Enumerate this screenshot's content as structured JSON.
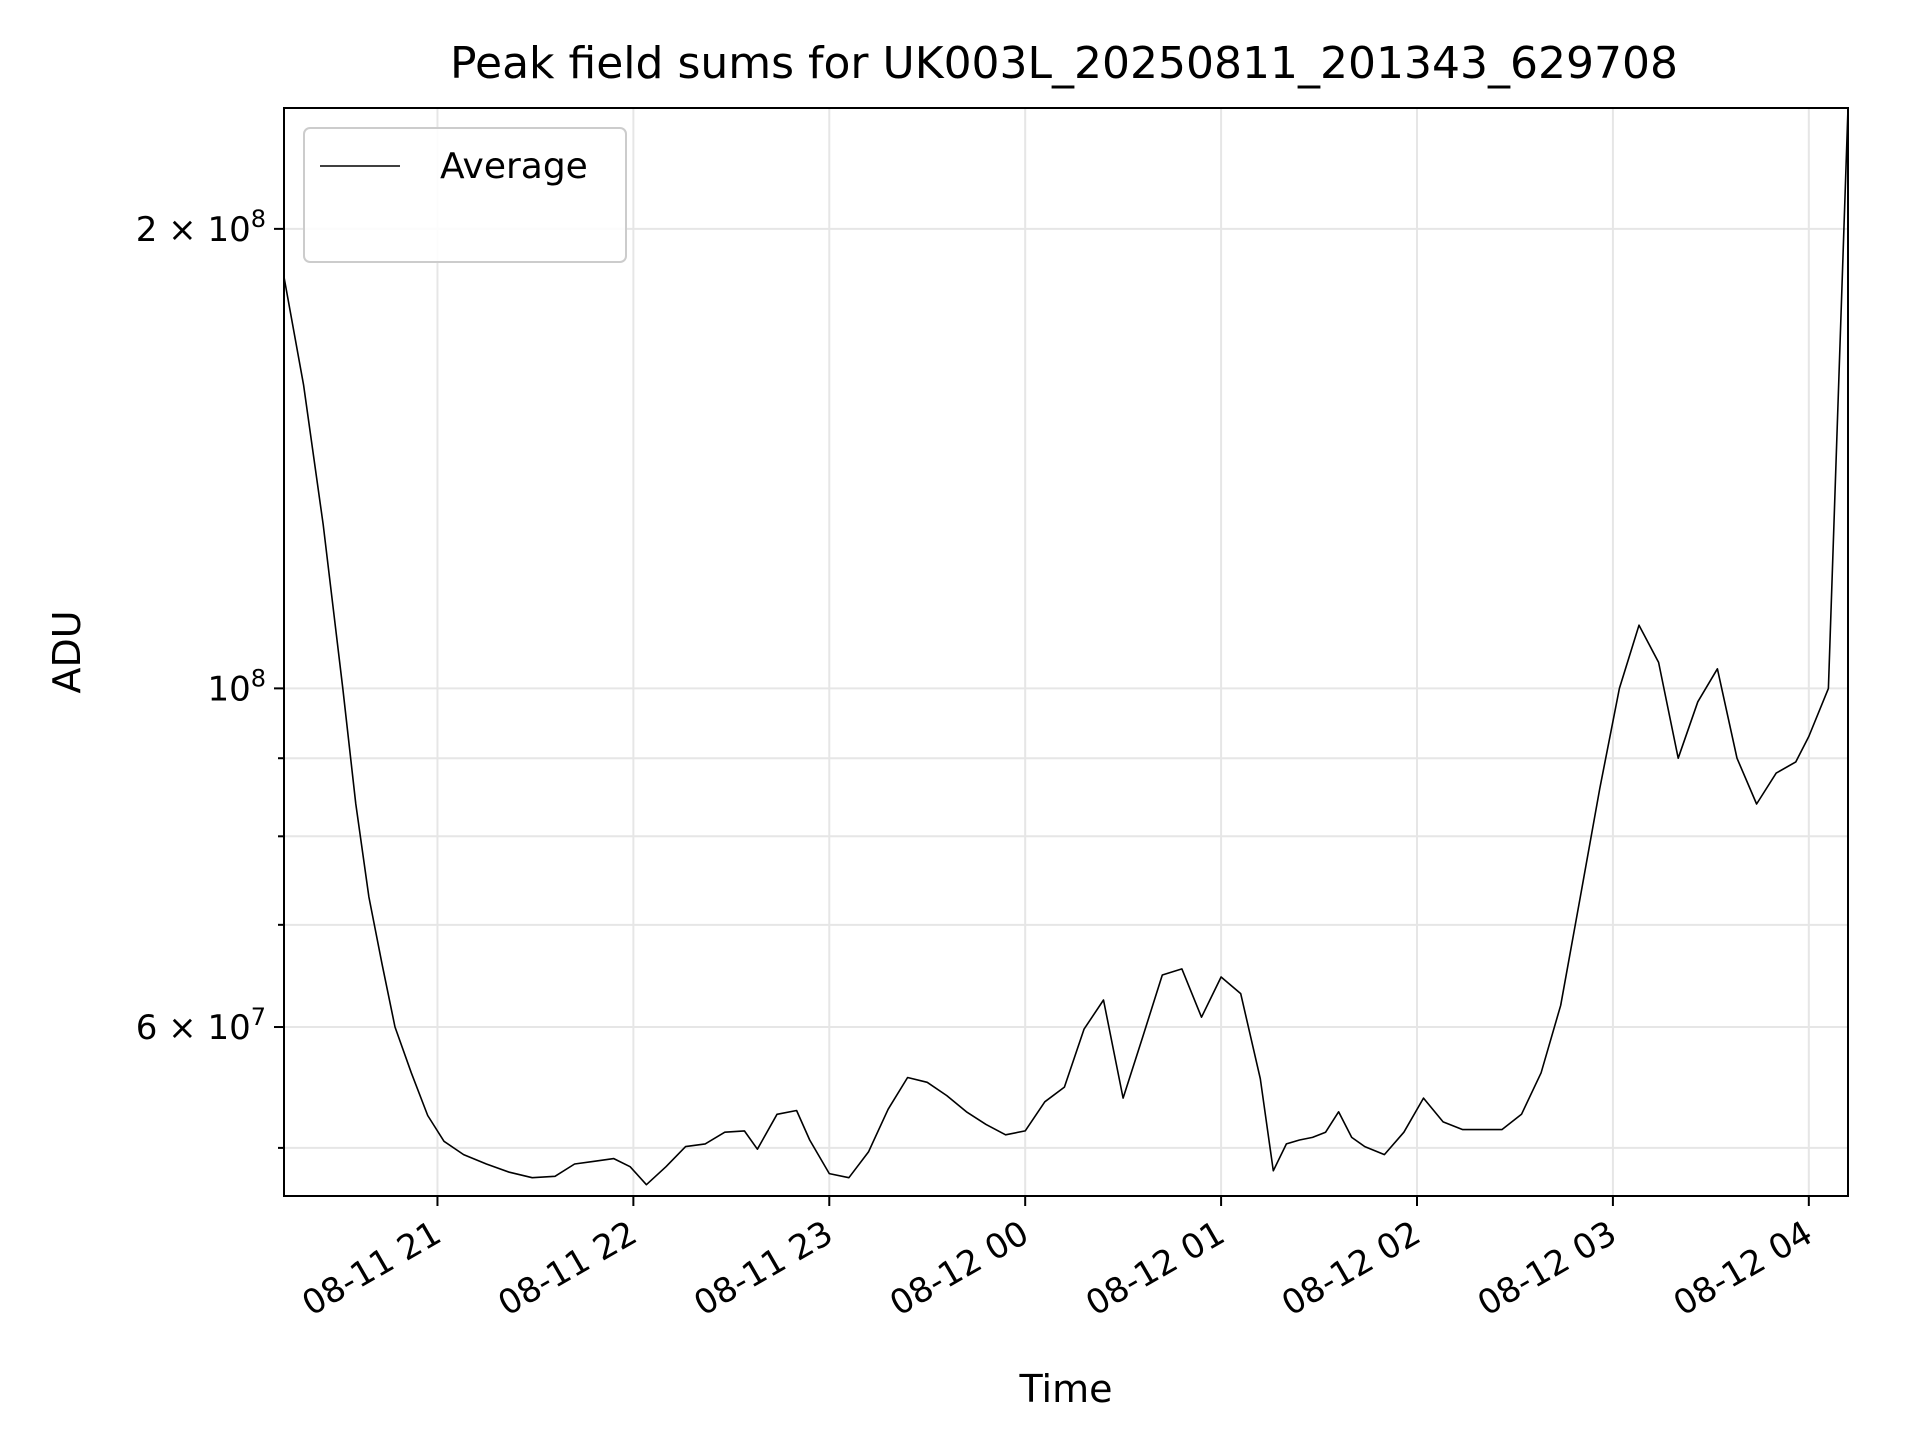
{
  "chart_data": {
    "type": "line",
    "title": "Peak field sums for UK003L_20250811_201343_629708",
    "xlabel": "Time",
    "ylabel": "ADU",
    "y_scale": "log",
    "ylim": [
      46500000,
      240000000
    ],
    "xlim": [
      "2025-08-11 20:13",
      "2025-08-12 04:12"
    ],
    "grid": true,
    "legend_position": "top-left",
    "x_ticks": [
      {
        "t": "2025-08-11 21:00",
        "label": "08-11 21"
      },
      {
        "t": "2025-08-11 22:00",
        "label": "08-11 22"
      },
      {
        "t": "2025-08-11 23:00",
        "label": "08-11 23"
      },
      {
        "t": "2025-08-12 00:00",
        "label": "08-12 00"
      },
      {
        "t": "2025-08-12 01:00",
        "label": "08-12 01"
      },
      {
        "t": "2025-08-12 02:00",
        "label": "08-12 02"
      },
      {
        "t": "2025-08-12 03:00",
        "label": "08-12 03"
      },
      {
        "t": "2025-08-12 04:00",
        "label": "08-12 04"
      }
    ],
    "y_ticks_major": [
      {
        "v": 200000000,
        "mant": "2",
        "exp": "8"
      },
      {
        "v": 100000000,
        "mant": "",
        "exp": "8"
      },
      {
        "v": 60000000,
        "mant": "6",
        "exp": "7"
      }
    ],
    "y_ticks_minor": [
      50000000,
      70000000,
      80000000,
      90000000
    ],
    "series": [
      {
        "name": "Average",
        "color": "#000000",
        "points": [
          [
            "2025-08-11 20:13",
            186000000
          ],
          [
            "2025-08-11 20:19",
            158000000
          ],
          [
            "2025-08-11 20:25",
            128000000
          ],
          [
            "2025-08-11 20:31",
            100000000
          ],
          [
            "2025-08-11 20:35",
            84000000
          ],
          [
            "2025-08-11 20:39",
            73000000
          ],
          [
            "2025-08-11 20:43",
            66000000
          ],
          [
            "2025-08-11 20:47",
            60000000
          ],
          [
            "2025-08-11 20:52",
            56000000
          ],
          [
            "2025-08-11 20:57",
            52500000
          ],
          [
            "2025-08-11 21:02",
            50500000
          ],
          [
            "2025-08-11 21:08",
            49500000
          ],
          [
            "2025-08-11 21:15",
            48800000
          ],
          [
            "2025-08-11 21:22",
            48200000
          ],
          [
            "2025-08-11 21:29",
            47800000
          ],
          [
            "2025-08-11 21:36",
            47900000
          ],
          [
            "2025-08-11 21:42",
            48800000
          ],
          [
            "2025-08-11 21:48",
            49000000
          ],
          [
            "2025-08-11 21:54",
            49200000
          ],
          [
            "2025-08-11 21:59",
            48600000
          ],
          [
            "2025-08-11 22:04",
            47300000
          ],
          [
            "2025-08-11 22:10",
            48600000
          ],
          [
            "2025-08-11 22:16",
            50100000
          ],
          [
            "2025-08-11 22:22",
            50300000
          ],
          [
            "2025-08-11 22:28",
            51200000
          ],
          [
            "2025-08-11 22:34",
            51300000
          ],
          [
            "2025-08-11 22:38",
            49900000
          ],
          [
            "2025-08-11 22:44",
            52600000
          ],
          [
            "2025-08-11 22:50",
            52900000
          ],
          [
            "2025-08-11 22:54",
            50600000
          ],
          [
            "2025-08-11 23:00",
            48100000
          ],
          [
            "2025-08-11 23:06",
            47800000
          ],
          [
            "2025-08-11 23:12",
            49700000
          ],
          [
            "2025-08-11 23:18",
            53000000
          ],
          [
            "2025-08-11 23:24",
            55600000
          ],
          [
            "2025-08-11 23:30",
            55200000
          ],
          [
            "2025-08-11 23:36",
            54100000
          ],
          [
            "2025-08-11 23:42",
            52800000
          ],
          [
            "2025-08-11 23:48",
            51800000
          ],
          [
            "2025-08-11 23:54",
            51000000
          ],
          [
            "2025-08-12 00:00",
            51300000
          ],
          [
            "2025-08-12 00:06",
            53600000
          ],
          [
            "2025-08-12 00:12",
            54800000
          ],
          [
            "2025-08-12 00:18",
            59800000
          ],
          [
            "2025-08-12 00:24",
            62500000
          ],
          [
            "2025-08-12 00:30",
            53900000
          ],
          [
            "2025-08-12 00:36",
            59100000
          ],
          [
            "2025-08-12 00:42",
            64900000
          ],
          [
            "2025-08-12 00:48",
            65500000
          ],
          [
            "2025-08-12 00:54",
            60900000
          ],
          [
            "2025-08-12 01:00",
            64700000
          ],
          [
            "2025-08-12 01:06",
            63100000
          ],
          [
            "2025-08-12 01:12",
            55500000
          ],
          [
            "2025-08-12 01:16",
            48300000
          ],
          [
            "2025-08-12 01:20",
            50300000
          ],
          [
            "2025-08-12 01:24",
            50600000
          ],
          [
            "2025-08-12 01:28",
            50800000
          ],
          [
            "2025-08-12 01:32",
            51200000
          ],
          [
            "2025-08-12 01:36",
            52800000
          ],
          [
            "2025-08-12 01:40",
            50800000
          ],
          [
            "2025-08-12 01:44",
            50100000
          ],
          [
            "2025-08-12 01:50",
            49500000
          ],
          [
            "2025-08-12 01:56",
            51200000
          ],
          [
            "2025-08-12 02:02",
            53900000
          ],
          [
            "2025-08-12 02:08",
            52000000
          ],
          [
            "2025-08-12 02:14",
            51400000
          ],
          [
            "2025-08-12 02:20",
            51400000
          ],
          [
            "2025-08-12 02:26",
            51400000
          ],
          [
            "2025-08-12 02:32",
            52600000
          ],
          [
            "2025-08-12 02:38",
            56000000
          ],
          [
            "2025-08-12 02:44",
            62000000
          ],
          [
            "2025-08-12 02:50",
            73000000
          ],
          [
            "2025-08-12 02:56",
            86000000
          ],
          [
            "2025-08-12 03:02",
            100000000
          ],
          [
            "2025-08-12 03:08",
            110000000
          ],
          [
            "2025-08-12 03:14",
            104000000
          ],
          [
            "2025-08-12 03:20",
            90000000
          ],
          [
            "2025-08-12 03:26",
            98000000
          ],
          [
            "2025-08-12 03:32",
            103000000
          ],
          [
            "2025-08-12 03:38",
            90000000
          ],
          [
            "2025-08-12 03:44",
            84000000
          ],
          [
            "2025-08-12 03:50",
            88000000
          ],
          [
            "2025-08-12 03:56",
            89500000
          ],
          [
            "2025-08-12 04:00",
            93000000
          ],
          [
            "2025-08-12 04:06",
            100000000
          ],
          [
            "2025-08-12 04:12",
            240000000
          ]
        ]
      }
    ]
  }
}
